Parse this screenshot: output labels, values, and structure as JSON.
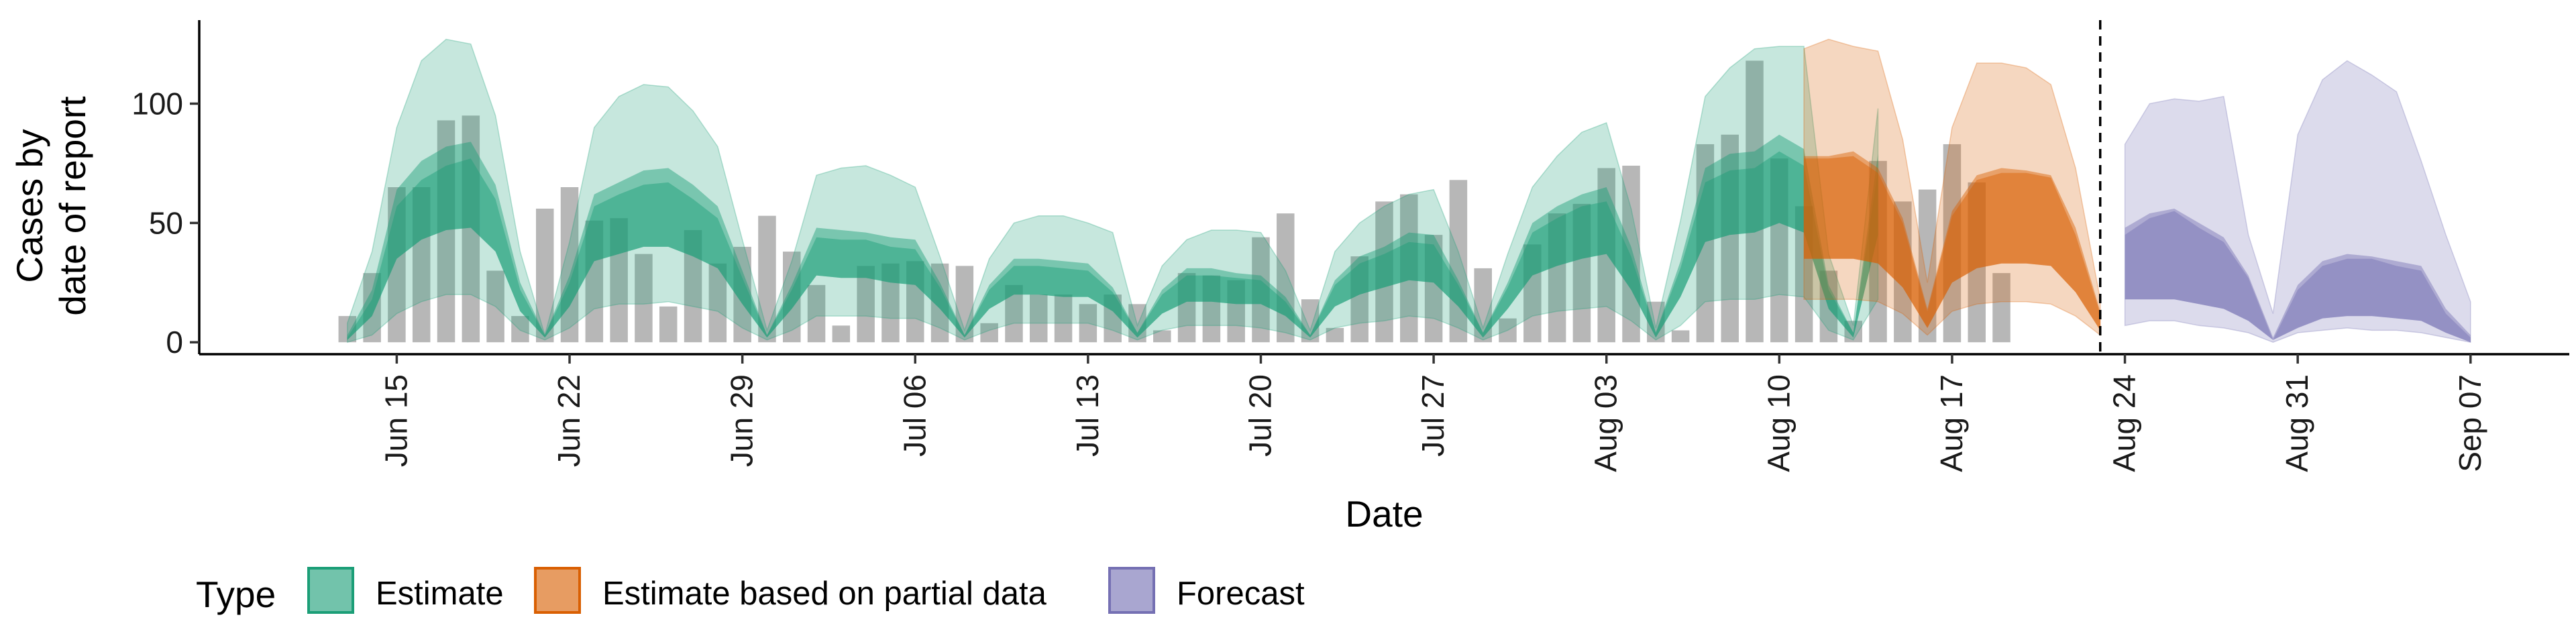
{
  "chart_data": {
    "type": "area",
    "xlabel": "Date",
    "ylabel_lines": [
      "Cases by",
      "date of report"
    ],
    "ylim": [
      -5,
      135
    ],
    "y_ticks": [
      0,
      50,
      100
    ],
    "x_ticks": [
      "Jun 15",
      "Jun 22",
      "Jun 29",
      "Jul 06",
      "Jul 13",
      "Jul 20",
      "Jul 27",
      "Aug 03",
      "Aug 10",
      "Aug 17",
      "Aug 24",
      "Aug 31",
      "Sep 07"
    ],
    "x_range": [
      "Jun 07",
      "Sep 11"
    ],
    "vline_date": "Aug 23",
    "grid": false,
    "legend_position": "bottom-left",
    "legend": {
      "title": "Type",
      "entries": [
        "Estimate",
        "Estimate based on partial data",
        "Forecast"
      ]
    },
    "colors": {
      "bar": "#a3a3a3",
      "Estimate": "#1b9e77",
      "Estimate based on partial data": "#d95f02",
      "Forecast": "#7570b3"
    },
    "bars": {
      "start_date": "Jun 13",
      "values": [
        11,
        29,
        65,
        65,
        93,
        95,
        30,
        11,
        56,
        65,
        51,
        52,
        37,
        15,
        47,
        33,
        40,
        53,
        38,
        24,
        7,
        32,
        33,
        34,
        33,
        32,
        8,
        24,
        20,
        20,
        16,
        20,
        16,
        5,
        29,
        28,
        26,
        44,
        54,
        18,
        6,
        36,
        59,
        62,
        45,
        68,
        31,
        10,
        41,
        54,
        58,
        73,
        74,
        17,
        5,
        83,
        87,
        118,
        77,
        57,
        30,
        9,
        76,
        59,
        64,
        83,
        67,
        29
      ]
    },
    "series": [
      {
        "name": "Estimate",
        "start_date": "Jun 13",
        "median": [
          2,
          18,
          57,
          68,
          74,
          77,
          60,
          22,
          3,
          25,
          57,
          62,
          66,
          67,
          60,
          52,
          27,
          3,
          22,
          44,
          43,
          43,
          40,
          39,
          23,
          3,
          22,
          32,
          32,
          31,
          30,
          21,
          4,
          20,
          28,
          28,
          27,
          26,
          17,
          3,
          24,
          33,
          37,
          42,
          41,
          24,
          4,
          23,
          46,
          52,
          57,
          59,
          36,
          4,
          31,
          67,
          72,
          73,
          80,
          74,
          22,
          4,
          72
        ],
        "inner_low": [
          1,
          11,
          35,
          43,
          47,
          48,
          38,
          13,
          2,
          15,
          34,
          37,
          40,
          40,
          36,
          31,
          16,
          2,
          14,
          28,
          27,
          27,
          25,
          24,
          14,
          2,
          14,
          20,
          20,
          19,
          19,
          13,
          2,
          12,
          17,
          17,
          16,
          16,
          11,
          2,
          15,
          20,
          23,
          26,
          25,
          15,
          2,
          14,
          28,
          32,
          35,
          37,
          22,
          2,
          19,
          42,
          45,
          46,
          50,
          46,
          14,
          2,
          45
        ],
        "inner_high": [
          3,
          22,
          64,
          76,
          82,
          84,
          66,
          25,
          3,
          28,
          62,
          67,
          72,
          73,
          66,
          57,
          30,
          3,
          24,
          48,
          47,
          46,
          44,
          43,
          25,
          3,
          24,
          35,
          35,
          34,
          33,
          23,
          4,
          22,
          31,
          31,
          29,
          28,
          19,
          3,
          26,
          36,
          40,
          46,
          45,
          26,
          4,
          25,
          50,
          57,
          62,
          65,
          40,
          4,
          34,
          73,
          79,
          80,
          87,
          81,
          24,
          4,
          79
        ],
        "outer_low": [
          0,
          3,
          12,
          17,
          20,
          20,
          15,
          5,
          1,
          6,
          14,
          16,
          16,
          17,
          15,
          13,
          6,
          1,
          5,
          11,
          11,
          11,
          10,
          10,
          6,
          1,
          5,
          8,
          8,
          8,
          8,
          5,
          1,
          5,
          7,
          7,
          7,
          6,
          4,
          1,
          6,
          8,
          9,
          11,
          10,
          6,
          1,
          5,
          11,
          13,
          14,
          15,
          9,
          1,
          7,
          17,
          18,
          18,
          20,
          19,
          5,
          1,
          18
        ],
        "outer_high": [
          8,
          38,
          90,
          118,
          127,
          125,
          95,
          38,
          3,
          42,
          90,
          103,
          108,
          107,
          97,
          82,
          43,
          5,
          34,
          70,
          73,
          74,
          70,
          65,
          36,
          5,
          35,
          50,
          53,
          53,
          50,
          46,
          7,
          32,
          43,
          47,
          47,
          46,
          30,
          5,
          38,
          50,
          57,
          62,
          64,
          38,
          6,
          37,
          65,
          78,
          88,
          92,
          56,
          6,
          51,
          103,
          115,
          123,
          124,
          124,
          37,
          7,
          98
        ]
      },
      {
        "name": "Estimate based on partial data",
        "start_date": "Aug 11",
        "median": [
          77,
          77,
          78,
          71,
          50,
          13,
          53,
          68,
          71,
          71,
          69,
          45,
          12
        ],
        "inner_low": [
          35,
          35,
          35,
          33,
          23,
          6,
          25,
          31,
          33,
          33,
          32,
          21,
          5
        ],
        "inner_high": [
          78,
          78,
          80,
          73,
          52,
          14,
          55,
          70,
          73,
          72,
          70,
          48,
          13
        ],
        "outer_low": [
          18,
          18,
          18,
          17,
          12,
          3,
          13,
          16,
          17,
          17,
          16,
          11,
          3
        ],
        "outer_high": [
          123,
          127,
          124,
          122,
          85,
          25,
          90,
          117,
          117,
          115,
          108,
          73,
          18
        ]
      },
      {
        "name": "Forecast",
        "start_date": "Aug 24",
        "median": [
          45,
          52,
          55,
          48,
          42,
          27,
          1,
          22,
          32,
          35,
          35,
          32,
          30,
          12,
          2
        ],
        "inner_low": [
          18,
          18,
          18,
          16,
          14,
          9,
          1,
          6,
          10,
          11,
          11,
          10,
          9,
          4,
          0
        ],
        "inner_high": [
          48,
          54,
          56,
          50,
          44,
          28,
          2,
          24,
          34,
          37,
          36,
          34,
          32,
          14,
          3
        ],
        "outer_low": [
          7,
          9,
          9,
          7,
          6,
          4,
          0,
          4,
          5,
          6,
          5,
          5,
          4,
          2,
          0
        ],
        "outer_high": [
          83,
          100,
          102,
          101,
          103,
          45,
          12,
          87,
          110,
          118,
          112,
          105,
          76,
          45,
          17
        ]
      }
    ]
  }
}
